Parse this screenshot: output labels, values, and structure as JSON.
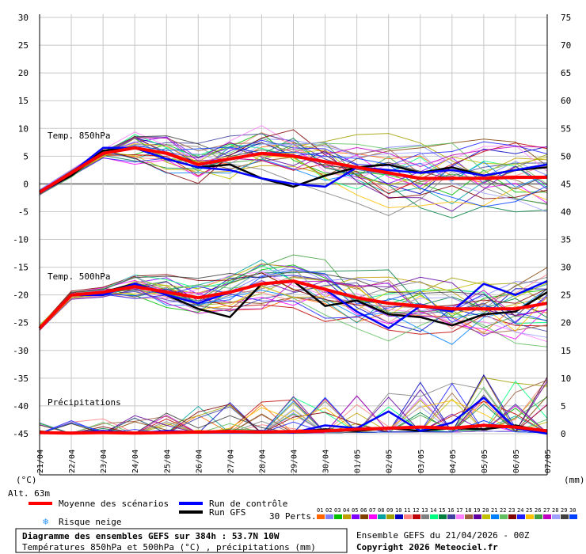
{
  "chart_data": {
    "type": "line",
    "title": "Diagramme des ensembles GEFS sur 384h : 53.7N 10W",
    "subtitle": "Températures 850hPa et 500hPa (°C) , précipitations (mm)",
    "left_axis": {
      "unit": "(°C)",
      "ylim": [
        -45,
        30
      ],
      "ticks": [
        30,
        25,
        20,
        15,
        10,
        5,
        0,
        -5,
        -10,
        -15,
        -20,
        -25,
        -30,
        -35,
        -40,
        -45
      ]
    },
    "right_axis": {
      "unit": "(mm)",
      "ylim": [
        0,
        75
      ],
      "ticks": [
        75,
        70,
        65,
        60,
        55,
        50,
        45,
        40,
        35,
        30,
        25,
        20,
        15,
        10,
        5,
        0
      ]
    },
    "x_dates": [
      "21/04",
      "22/04",
      "23/04",
      "24/04",
      "25/04",
      "26/04",
      "27/04",
      "28/04",
      "29/04",
      "30/04",
      "01/05",
      "02/05",
      "03/05",
      "04/05",
      "05/05",
      "06/05",
      "07/05"
    ],
    "altitude": "Alt. 63m",
    "panel_labels": {
      "t850": "Temp. 850hPa",
      "t500": "Temp. 500hPa",
      "precip": "Précipitations"
    },
    "legend": {
      "mean": "Moyenne des scénarios",
      "control": "Run de contrôle",
      "gfs": "Run GFS",
      "snow": "Risque neige",
      "perts_label": "30 Perts.",
      "perts": [
        "01",
        "02",
        "03",
        "04",
        "05",
        "06",
        "07",
        "08",
        "09",
        "10",
        "11",
        "12",
        "13",
        "14",
        "15",
        "16",
        "17",
        "18",
        "19",
        "20",
        "21",
        "22",
        "23",
        "24",
        "25",
        "26",
        "27",
        "28",
        "29",
        "30"
      ],
      "pert_colors": [
        "#ff6600",
        "#8080ff",
        "#00c000",
        "#c0a000",
        "#8000ff",
        "#804000",
        "#ff00ff",
        "#00a0a0",
        "#a0a000",
        "#0000c0",
        "#ff8080",
        "#c00000",
        "#808080",
        "#00ff80",
        "#008040",
        "#4040a0",
        "#ff80ff",
        "#a06040",
        "#6000a0",
        "#c0c000",
        "#0080ff",
        "#60c060",
        "#800000",
        "#2020ff",
        "#ffc000",
        "#40a040",
        "#c000c0",
        "#a0a0ff",
        "#404040",
        "#0040ff"
      ]
    },
    "series_colors": {
      "mean": "#ff0000",
      "control": "#0000ff",
      "gfs": "#000000"
    },
    "series": {
      "t850": {
        "mean": [
          -1.5,
          2.0,
          5.5,
          6.5,
          5.5,
          3.5,
          4.5,
          5.5,
          5.0,
          4.0,
          3.0,
          2.0,
          1.0,
          1.0,
          1.0,
          1.2,
          1.2
        ],
        "control": [
          -1.5,
          2.0,
          6.5,
          6.5,
          4.5,
          3.0,
          2.5,
          1.0,
          0.0,
          -0.5,
          3.0,
          2.5,
          2.0,
          2.5,
          1.5,
          2.5,
          3.5
        ],
        "gfs": [
          -1.5,
          1.5,
          6.0,
          6.5,
          4.5,
          3.0,
          3.5,
          1.0,
          -0.5,
          1.5,
          3.0,
          3.5,
          2.0,
          3.0,
          1.5,
          2.5,
          3.0
        ]
      },
      "t500": {
        "mean": [
          -26.0,
          -20.0,
          -19.5,
          -18.5,
          -19.5,
          -20.5,
          -19.5,
          -18.0,
          -17.5,
          -19.0,
          -20.5,
          -21.5,
          -22.0,
          -22.5,
          -22.5,
          -22.5,
          -21.5
        ],
        "control": [
          -26.0,
          -20.0,
          -20.0,
          -18.0,
          -20.0,
          -21.5,
          -19.5,
          -18.0,
          -17.5,
          -19.0,
          -23.0,
          -26.0,
          -22.0,
          -23.0,
          -18.0,
          -20.0,
          -17.5
        ],
        "gfs": [
          -26.0,
          -20.0,
          -19.5,
          -18.0,
          -20.0,
          -22.5,
          -24.0,
          -18.0,
          -17.5,
          -22.0,
          -21.0,
          -23.5,
          -24.0,
          -25.5,
          -23.5,
          -23.0,
          -19.5
        ]
      },
      "precip": {
        "mean": [
          0.2,
          0.1,
          0.2,
          0.1,
          0.2,
          0.3,
          0.4,
          0.3,
          0.4,
          0.5,
          0.8,
          1.0,
          1.2,
          1.0,
          1.5,
          1.2,
          0.5
        ],
        "control": [
          0.2,
          0.2,
          0.5,
          0.1,
          0.5,
          0.3,
          0.3,
          0.5,
          0.2,
          1.5,
          1.0,
          4.0,
          0.5,
          2.0,
          6.5,
          1.0,
          0.0
        ],
        "gfs": [
          0.2,
          0.1,
          0.1,
          0.2,
          0.3,
          0.2,
          0.3,
          0.2,
          0.3,
          0.8,
          0.5,
          1.0,
          0.5,
          1.0,
          0.8,
          1.5,
          0.3
        ]
      }
    }
  },
  "footer": {
    "run_info": "Ensemble GEFS du 21/04/2026 - 00Z",
    "copyright": "Copyright 2026 Meteociel.fr"
  }
}
